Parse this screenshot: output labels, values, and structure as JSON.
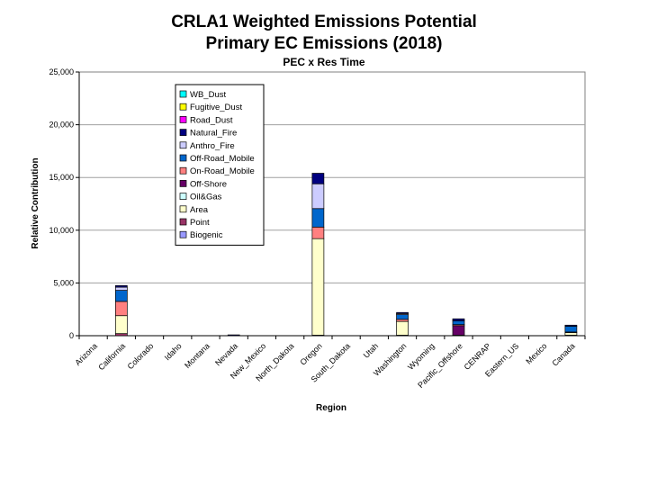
{
  "chart_data": {
    "type": "bar",
    "stacked": true,
    "title": "CRLA1 Weighted Emissions Potential",
    "subtitle": "Primary EC Emissions (2018)",
    "subtitle2": "PEC x Res Time",
    "xlabel": "Region",
    "ylabel": "Relative Contribution",
    "ylim": [
      0,
      25000
    ],
    "yticks": [
      "0",
      "5,000",
      "10,000",
      "15,000",
      "20,000",
      "25,000"
    ],
    "ytick_values": [
      0,
      5000,
      10000,
      15000,
      20000,
      25000
    ],
    "grid": true,
    "legend_position": "top-center",
    "categories": [
      "Arizona",
      "California",
      "Colorado",
      "Idaho",
      "Montana",
      "Nevada",
      "New_Mexico",
      "North_Dakota",
      "Oregon",
      "South_Dakota",
      "Utah",
      "Washington",
      "Wyoming",
      "Pacific_Offshore",
      "CENRAP",
      "Eastern_US",
      "Mexico",
      "Canada"
    ],
    "series": [
      {
        "name": "Biogenic",
        "color": "#9999ff",
        "values": [
          0,
          0,
          0,
          0,
          0,
          0,
          0,
          0,
          0,
          0,
          0,
          0,
          0,
          0,
          0,
          0,
          0,
          0
        ]
      },
      {
        "name": "Point",
        "color": "#993366",
        "values": [
          0,
          200,
          0,
          0,
          0,
          0,
          0,
          0,
          50,
          0,
          0,
          50,
          0,
          50,
          0,
          0,
          0,
          50
        ]
      },
      {
        "name": "Area",
        "color": "#ffffcc",
        "values": [
          0,
          1700,
          0,
          0,
          0,
          0,
          0,
          0,
          9150,
          0,
          0,
          1300,
          0,
          0,
          0,
          0,
          0,
          250
        ]
      },
      {
        "name": "Oil&Gas",
        "color": "#ccffff",
        "values": [
          0,
          0,
          0,
          0,
          0,
          0,
          0,
          0,
          0,
          0,
          0,
          0,
          0,
          0,
          0,
          0,
          0,
          0
        ]
      },
      {
        "name": "Off-Shore",
        "color": "#660066",
        "values": [
          0,
          0,
          0,
          0,
          0,
          0,
          0,
          0,
          0,
          0,
          0,
          0,
          0,
          900,
          0,
          0,
          0,
          0
        ]
      },
      {
        "name": "On-Road_Mobile",
        "color": "#ff8080",
        "values": [
          0,
          1350,
          0,
          0,
          0,
          0,
          0,
          0,
          1100,
          0,
          0,
          200,
          0,
          100,
          0,
          0,
          0,
          50
        ]
      },
      {
        "name": "Off-Road_Mobile",
        "color": "#0066cc",
        "values": [
          0,
          1050,
          0,
          0,
          0,
          0,
          0,
          0,
          1750,
          0,
          0,
          450,
          0,
          350,
          0,
          0,
          0,
          550
        ]
      },
      {
        "name": "Anthro_Fire",
        "color": "#ccccff",
        "values": [
          0,
          300,
          0,
          0,
          0,
          0,
          0,
          0,
          2350,
          0,
          0,
          100,
          0,
          0,
          0,
          0,
          0,
          0
        ]
      },
      {
        "name": "Natural_Fire",
        "color": "#000080",
        "values": [
          0,
          150,
          0,
          0,
          0,
          80,
          0,
          0,
          1000,
          0,
          0,
          100,
          0,
          200,
          0,
          0,
          0,
          100
        ]
      },
      {
        "name": "Road_Dust",
        "color": "#ff00ff",
        "values": [
          0,
          0,
          0,
          0,
          0,
          0,
          0,
          0,
          0,
          0,
          0,
          0,
          0,
          0,
          0,
          0,
          0,
          0
        ]
      },
      {
        "name": "Fugitive_Dust",
        "color": "#ffff00",
        "values": [
          0,
          0,
          0,
          0,
          0,
          0,
          0,
          0,
          0,
          0,
          0,
          0,
          0,
          0,
          0,
          0,
          0,
          0
        ]
      },
      {
        "name": "WB_Dust",
        "color": "#00ffff",
        "values": [
          0,
          0,
          0,
          0,
          0,
          0,
          0,
          0,
          0,
          0,
          0,
          0,
          0,
          0,
          0,
          0,
          0,
          0
        ]
      }
    ]
  }
}
